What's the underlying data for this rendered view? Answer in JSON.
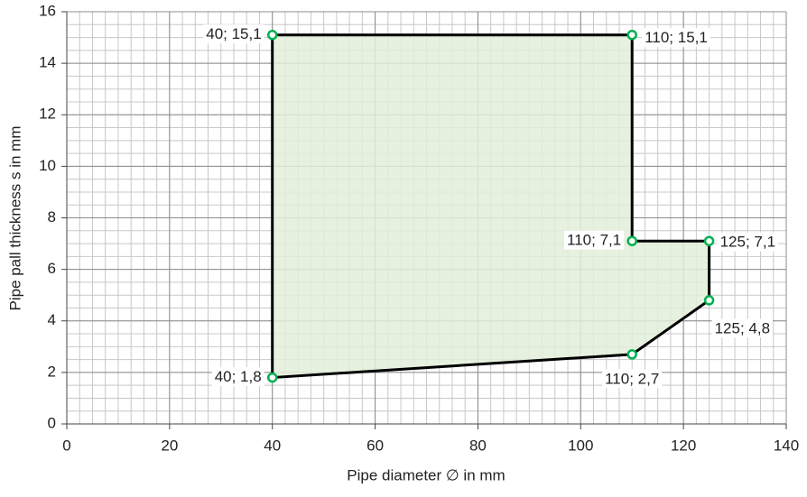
{
  "chart_data": {
    "type": "scatter",
    "x_label": "Pipe diameter ∅ in mm",
    "y_label": "Pipe pall thickness s in mm",
    "series": [
      {
        "x": [
          40,
          110,
          110,
          125,
          125,
          110,
          40
        ],
        "values": [
          15.1,
          15.1,
          7.1,
          7.1,
          4.8,
          2.7,
          1.8
        ],
        "value_labels": [
          "40; 15,1",
          "110; 15,1",
          "110; 7,1",
          "125; 7,1",
          "125; 4,8",
          "110; 2,7",
          "40; 1,8"
        ],
        "color": "#000000",
        "fill": "#e2efd9",
        "marker_color": "#00b050"
      }
    ],
    "closed": true,
    "xlim": [
      0,
      140
    ],
    "xticks": [
      0,
      20,
      40,
      60,
      80,
      100,
      120,
      140
    ],
    "ylim": [
      0,
      16
    ],
    "yticks": [
      0,
      2,
      4,
      6,
      8,
      10,
      12,
      14,
      16
    ],
    "grid": true,
    "minor_grid": [
      2.5,
      0.5
    ]
  }
}
